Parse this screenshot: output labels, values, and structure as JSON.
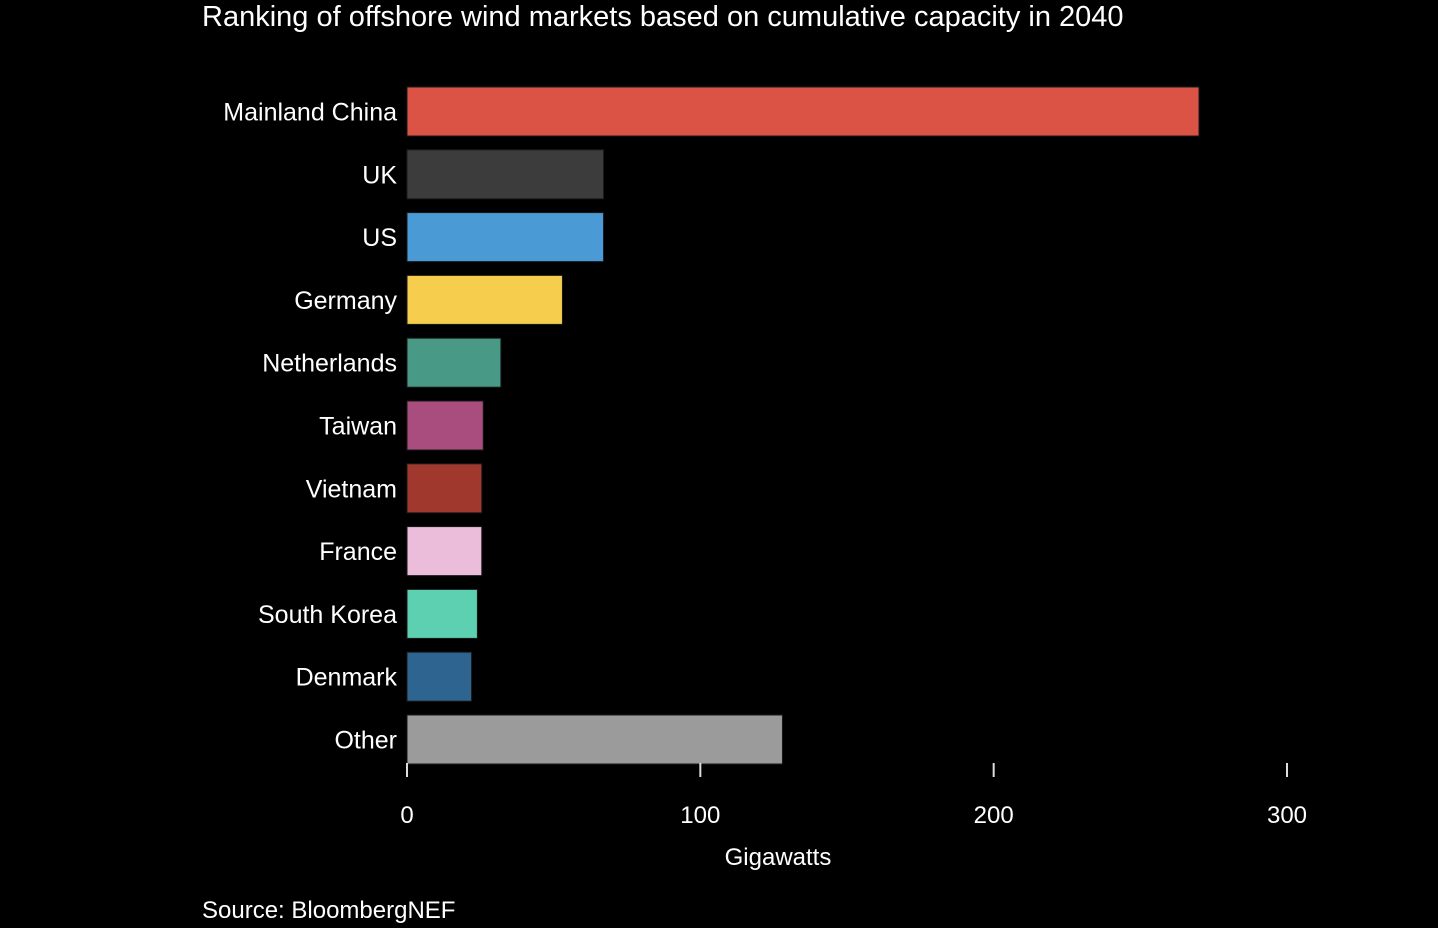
{
  "chart_data": {
    "type": "bar",
    "orientation": "horizontal",
    "title": "Ranking of offshore wind markets based on cumulative capacity in 2040",
    "xlabel": "Gigawatts",
    "ylabel": "",
    "xlim": [
      0,
      300
    ],
    "xticks": [
      0,
      100,
      200,
      300
    ],
    "grid": false,
    "categories": [
      "Mainland China",
      "UK",
      "US",
      "Germany",
      "Netherlands",
      "Taiwan",
      "Vietnam",
      "France",
      "South Korea",
      "Denmark",
      "Other"
    ],
    "values": [
      270,
      67,
      67,
      53,
      32,
      26,
      25.5,
      25.5,
      24,
      22,
      128
    ],
    "colors": [
      "#db5344",
      "#3c3c3c",
      "#4a9ad6",
      "#f6cd4c",
      "#489a86",
      "#a84d7e",
      "#a0382e",
      "#ecbcdb",
      "#5dd0b2",
      "#2d6590",
      "#9b9b9b"
    ],
    "source": "Source: BloombergNEF"
  }
}
